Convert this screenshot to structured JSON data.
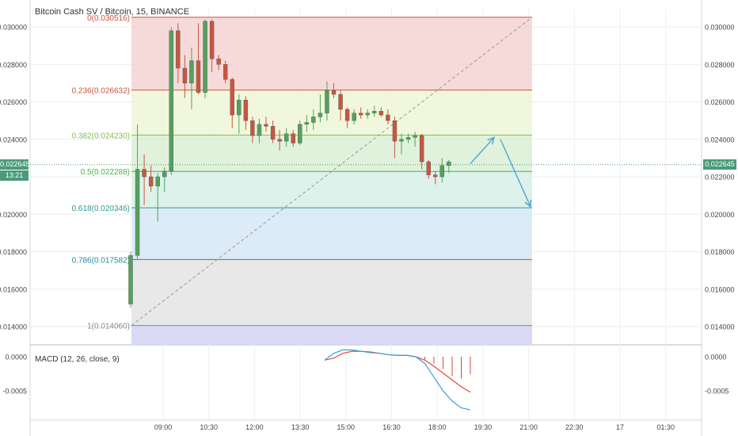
{
  "header": {
    "title": "Bitcoin Cash SV / Bitcoin, 15, BINANCE"
  },
  "price_badge": {
    "value": "0.022645",
    "timer": "13:21"
  },
  "indicator": {
    "label": "MACD (12, 26, close, 9)"
  },
  "colors": {
    "up": "#53a15d",
    "down": "#c9553f",
    "grid": "#eeeeee",
    "arrow": "#5aa7d6",
    "macd": "#3d9fd6",
    "signal": "#e0463a"
  },
  "chart_data": {
    "type": "candlestick",
    "price_axis": [
      "0.030000",
      "0.028000",
      "0.026000",
      "0.024000",
      "0.022000",
      "0.020000",
      "0.018000",
      "0.016000",
      "0.014000"
    ],
    "macd_axis": [
      "0.0000",
      "-0.0005"
    ],
    "time_axis": [
      "09:00",
      "10:30",
      "12:00",
      "13:30",
      "15:00",
      "16:30",
      "18:00",
      "19:30",
      "21:00",
      "22:30",
      "17",
      "01:30"
    ],
    "ylim": [
      0.0134,
      0.0308
    ],
    "fib_levels": [
      {
        "label": "0(0.030516)",
        "value": 0.030516,
        "color": "#c9553f",
        "fill": "#f4d4d4"
      },
      {
        "label": "0.236(0.026632)",
        "value": 0.026632,
        "color": "#c9553f",
        "fill": "#eef6d6"
      },
      {
        "label": "0.382(0.024230)",
        "value": 0.02423,
        "color": "#7fc14e",
        "fill": "#daf0d6"
      },
      {
        "label": "0.5(0.022288)",
        "value": 0.022288,
        "color": "#4caf50",
        "fill": "#d6f0e6"
      },
      {
        "label": "0.618(0.020346)",
        "value": 0.020346,
        "color": "#2b9c96",
        "fill": "#d6e8f4"
      },
      {
        "label": "0.786(0.017582)",
        "value": 0.017582,
        "color": "#2b86a6",
        "fill": "#e4e4e4"
      },
      {
        "label": "1(0.014060)",
        "value": 0.01406,
        "color": "#888888",
        "fill": "#d4d4f4"
      }
    ],
    "candles": [
      {
        "o": 0.0152,
        "h": 0.018,
        "l": 0.015,
        "c": 0.0178
      },
      {
        "o": 0.0178,
        "h": 0.0248,
        "l": 0.0176,
        "c": 0.0224
      },
      {
        "o": 0.0224,
        "h": 0.0232,
        "l": 0.0205,
        "c": 0.022
      },
      {
        "o": 0.022,
        "h": 0.0226,
        "l": 0.0212,
        "c": 0.0215
      },
      {
        "o": 0.0215,
        "h": 0.0222,
        "l": 0.0196,
        "c": 0.022
      },
      {
        "o": 0.022,
        "h": 0.0225,
        "l": 0.0212,
        "c": 0.0223
      },
      {
        "o": 0.0223,
        "h": 0.03,
        "l": 0.0221,
        "c": 0.0298
      },
      {
        "o": 0.0298,
        "h": 0.0302,
        "l": 0.027,
        "c": 0.0278
      },
      {
        "o": 0.0278,
        "h": 0.0285,
        "l": 0.0262,
        "c": 0.027
      },
      {
        "o": 0.027,
        "h": 0.0289,
        "l": 0.0256,
        "c": 0.0282
      },
      {
        "o": 0.0282,
        "h": 0.0302,
        "l": 0.0264,
        "c": 0.0265
      },
      {
        "o": 0.0265,
        "h": 0.0304,
        "l": 0.0262,
        "c": 0.0303
      },
      {
        "o": 0.0303,
        "h": 0.0304,
        "l": 0.0276,
        "c": 0.0283
      },
      {
        "o": 0.0283,
        "h": 0.0285,
        "l": 0.0277,
        "c": 0.028
      },
      {
        "o": 0.028,
        "h": 0.0282,
        "l": 0.027,
        "c": 0.0272
      },
      {
        "o": 0.0272,
        "h": 0.0273,
        "l": 0.0246,
        "c": 0.0253
      },
      {
        "o": 0.0253,
        "h": 0.0264,
        "l": 0.0243,
        "c": 0.0261
      },
      {
        "o": 0.0261,
        "h": 0.0263,
        "l": 0.0245,
        "c": 0.025
      },
      {
        "o": 0.025,
        "h": 0.0252,
        "l": 0.0238,
        "c": 0.0242
      },
      {
        "o": 0.0242,
        "h": 0.0251,
        "l": 0.0238,
        "c": 0.0248
      },
      {
        "o": 0.0248,
        "h": 0.0252,
        "l": 0.0244,
        "c": 0.0247
      },
      {
        "o": 0.0247,
        "h": 0.025,
        "l": 0.0238,
        "c": 0.024
      },
      {
        "o": 0.024,
        "h": 0.0245,
        "l": 0.0234,
        "c": 0.0239
      },
      {
        "o": 0.0239,
        "h": 0.0246,
        "l": 0.0236,
        "c": 0.0243
      },
      {
        "o": 0.0243,
        "h": 0.0245,
        "l": 0.0236,
        "c": 0.0238
      },
      {
        "o": 0.0238,
        "h": 0.025,
        "l": 0.0237,
        "c": 0.0248
      },
      {
        "o": 0.0248,
        "h": 0.0253,
        "l": 0.0244,
        "c": 0.0249
      },
      {
        "o": 0.0249,
        "h": 0.0256,
        "l": 0.0245,
        "c": 0.0252
      },
      {
        "o": 0.0252,
        "h": 0.0264,
        "l": 0.0249,
        "c": 0.0254
      },
      {
        "o": 0.0254,
        "h": 0.0271,
        "l": 0.025,
        "c": 0.0266
      },
      {
        "o": 0.0266,
        "h": 0.027,
        "l": 0.0262,
        "c": 0.0264
      },
      {
        "o": 0.0264,
        "h": 0.0266,
        "l": 0.025,
        "c": 0.0256
      },
      {
        "o": 0.0256,
        "h": 0.0257,
        "l": 0.0246,
        "c": 0.025
      },
      {
        "o": 0.025,
        "h": 0.0256,
        "l": 0.0248,
        "c": 0.0254
      },
      {
        "o": 0.0254,
        "h": 0.0257,
        "l": 0.0251,
        "c": 0.0253
      },
      {
        "o": 0.0253,
        "h": 0.0256,
        "l": 0.0251,
        "c": 0.0254
      },
      {
        "o": 0.0254,
        "h": 0.0258,
        "l": 0.0252,
        "c": 0.0255
      },
      {
        "o": 0.0255,
        "h": 0.0257,
        "l": 0.0252,
        "c": 0.0253
      },
      {
        "o": 0.0253,
        "h": 0.0256,
        "l": 0.0248,
        "c": 0.025
      },
      {
        "o": 0.025,
        "h": 0.0252,
        "l": 0.023,
        "c": 0.0239
      },
      {
        "o": 0.0239,
        "h": 0.0243,
        "l": 0.0232,
        "c": 0.024
      },
      {
        "o": 0.024,
        "h": 0.0243,
        "l": 0.0238,
        "c": 0.0241
      },
      {
        "o": 0.0241,
        "h": 0.0244,
        "l": 0.0236,
        "c": 0.0242
      },
      {
        "o": 0.0242,
        "h": 0.0243,
        "l": 0.0224,
        "c": 0.0228
      },
      {
        "o": 0.0228,
        "h": 0.0229,
        "l": 0.0219,
        "c": 0.0221
      },
      {
        "o": 0.0221,
        "h": 0.0223,
        "l": 0.0216,
        "c": 0.022
      },
      {
        "o": 0.022,
        "h": 0.023,
        "l": 0.0217,
        "c": 0.0226
      },
      {
        "o": 0.0226,
        "h": 0.0229,
        "l": 0.0222,
        "c": 0.0228
      }
    ],
    "macd_line": [
      -5e-05,
      5e-05,
      0.0001,
      0.0001,
      8e-05,
      6e-05,
      5e-05,
      3e-05,
      2e-05,
      2e-05,
      0.0,
      -0.0001,
      -0.0003,
      -0.0005,
      -0.00065,
      -0.00075,
      -0.00078
    ],
    "signal_line": [
      -5e-05,
      -2e-05,
      5e-05,
      8e-05,
      8e-05,
      7e-05,
      5e-05,
      3e-05,
      2e-05,
      2e-05,
      0.0,
      -5e-05,
      -0.00014,
      -0.00024,
      -0.00034,
      -0.00044,
      -0.00052
    ],
    "histogram": [
      0,
      0,
      0,
      0,
      0,
      0,
      0,
      0,
      0,
      0,
      0,
      -4e-05,
      -0.0001,
      -0.00018,
      -0.00028,
      -0.00032,
      -0.00026
    ]
  }
}
